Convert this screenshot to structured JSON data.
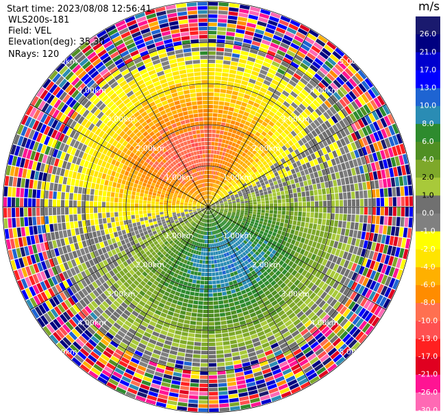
{
  "header": {
    "start_time": "Start time: 2023/08/08 12:56:41",
    "instrument": "WLS200s-181",
    "field": "Field: VEL",
    "elevation": "Elevation(deg): 35.30",
    "nrays": "NRays: 120"
  },
  "chart_data": {
    "type": "heatmap",
    "projection": "polar PPI",
    "n_rays": 120,
    "range_ring_labels": [
      "1.00km",
      "2.00km",
      "3.00km",
      "4.00km",
      "5.00km"
    ],
    "range_rings_km": [
      1,
      2,
      3,
      4,
      5
    ],
    "max_range_km": 5.0,
    "colorbar": {
      "unit": "m/s",
      "boundaries": [
        -30,
        -26,
        -21,
        -17,
        -13,
        -10,
        -8,
        -6,
        -4,
        -2,
        -1,
        0,
        1,
        2,
        4,
        6,
        8,
        10,
        13,
        17,
        21,
        26,
        30
      ],
      "tick_labels": [
        "26.0",
        "21.0",
        "17.0",
        "13.0",
        "10.0",
        "8.0",
        "6.0",
        "4.0",
        "2.0",
        "1.0",
        "0.0",
        "-1.0",
        "-2.0",
        "-4.0",
        "-6.0",
        "-8.0",
        "-10.0",
        "-13.0",
        "-17.0",
        "-21.0",
        "-26.0",
        "-30.0"
      ],
      "colors": [
        "#1a1a6e",
        "#000080",
        "#0000cd",
        "#0000ff",
        "#1e64d2",
        "#2a8cb4",
        "#2e8b2e",
        "#4f8f23",
        "#7ea82a",
        "#a8c93a",
        "#707070",
        "#808080",
        "#ffff00",
        "#ffe400",
        "#ffb000",
        "#ff8c00",
        "#ff7050",
        "#ff5050",
        "#ff2020",
        "#e00020",
        "#ff1493",
        "#ff69b4"
      ]
    },
    "pattern": {
      "approaching_lobe_azimuth_deg": 310,
      "receding_lobe_azimuth_deg": 160,
      "peak_speed_ms": 9.5,
      "noise_beyond_km": 4.0
    }
  }
}
